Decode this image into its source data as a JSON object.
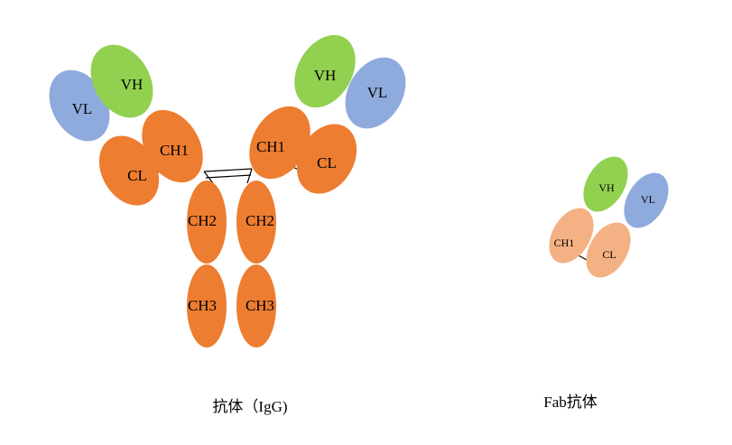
{
  "igg": {
    "caption": "抗体（IgG)",
    "domains": [
      "VL",
      "VH",
      "CH1",
      "CL",
      "VH",
      "VL",
      "CH1",
      "CL",
      "CH2",
      "CH2",
      "CH3",
      "CH3"
    ]
  },
  "fab": {
    "caption": "Fab抗体",
    "domains": [
      "VH",
      "VL",
      "CH1",
      "CL"
    ]
  }
}
